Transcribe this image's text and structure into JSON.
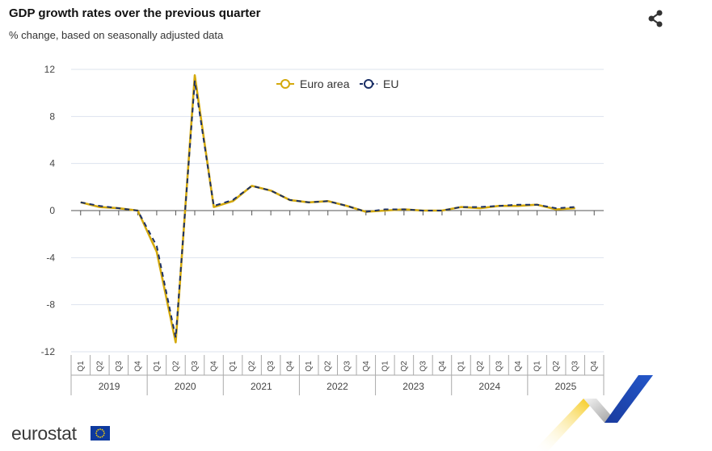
{
  "header": {
    "title": "GDP growth rates over the previous quarter",
    "subtitle": "% change, based on seasonally adjusted data"
  },
  "footer": {
    "logo_text": "eurostat"
  },
  "colors": {
    "euro_area": "#d4a90c",
    "eu": "#1a2f66",
    "grid": "#dde3ee"
  },
  "icons": {
    "share": "share-icon",
    "flag": "eu-flag-icon"
  },
  "chart_data": {
    "type": "line",
    "title": "GDP growth rates over the previous quarter",
    "subtitle": "% change, based on seasonally adjusted data",
    "ylim": [
      -12,
      12
    ],
    "yticks": [
      12,
      8,
      4,
      0,
      -4,
      -8,
      -12
    ],
    "ytick_labels": [
      "12",
      "8",
      "4",
      "0",
      "-4",
      "-8",
      "-12"
    ],
    "legend": "top-center",
    "years": [
      "2019",
      "2020",
      "2021",
      "2022",
      "2023",
      "2024",
      "2025"
    ],
    "quarters": [
      "Q1",
      "Q2",
      "Q3",
      "Q4"
    ],
    "categories": [
      "2019Q1",
      "2019Q2",
      "2019Q3",
      "2019Q4",
      "2020Q1",
      "2020Q2",
      "2020Q3",
      "2020Q4",
      "2021Q1",
      "2021Q2",
      "2021Q3",
      "2021Q4",
      "2022Q1",
      "2022Q2",
      "2022Q3",
      "2022Q4",
      "2023Q1",
      "2023Q2",
      "2023Q3",
      "2023Q4",
      "2024Q1",
      "2024Q2",
      "2024Q3",
      "2024Q4",
      "2025Q1",
      "2025Q2",
      "2025Q3",
      "2025Q4"
    ],
    "series": [
      {
        "name": "Euro area",
        "color": "#d4a90c",
        "values": [
          0.7,
          0.3,
          0.2,
          0.0,
          -3.5,
          -11.2,
          11.5,
          0.3,
          0.8,
          2.1,
          1.7,
          0.9,
          0.7,
          0.8,
          0.4,
          -0.1,
          0.0,
          0.1,
          0.0,
          0.0,
          0.3,
          0.2,
          0.4,
          0.4,
          0.5,
          0.1,
          0.2,
          null
        ]
      },
      {
        "name": "EU",
        "color": "#1a2f66",
        "values": [
          0.7,
          0.4,
          0.2,
          0.0,
          -3.0,
          -10.8,
          11.0,
          0.4,
          0.9,
          2.1,
          1.7,
          0.9,
          0.7,
          0.8,
          0.4,
          -0.1,
          0.1,
          0.1,
          0.0,
          0.0,
          0.3,
          0.3,
          0.4,
          0.5,
          0.5,
          0.2,
          0.3,
          null
        ]
      }
    ]
  }
}
